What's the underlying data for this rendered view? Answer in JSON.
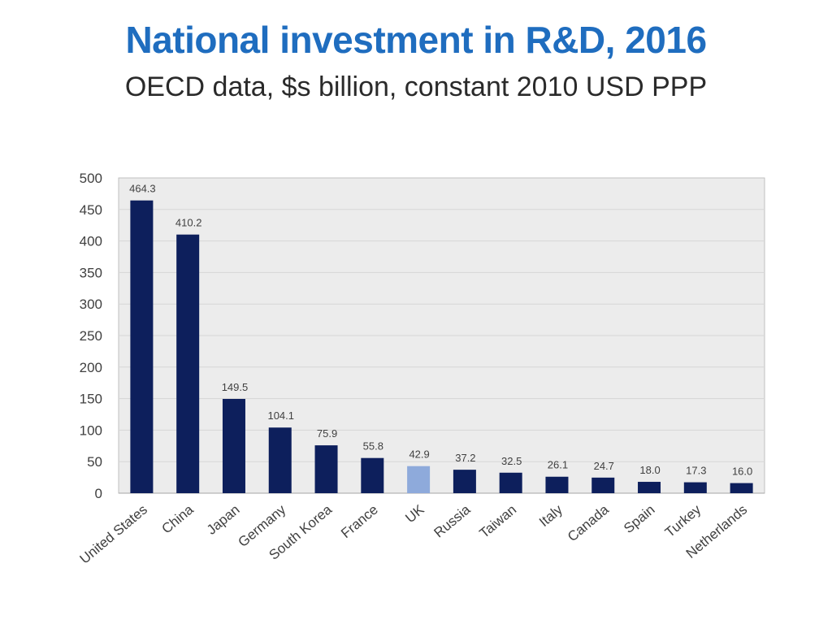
{
  "title": "National investment in R&D, 2016",
  "subtitle": "OECD data, $s billion, constant 2010 USD PPP",
  "colors": {
    "bar": "#0d1f5c",
    "highlight": "#8eaadb",
    "plot_bg": "#ececec",
    "grid": "#d6d6d6"
  },
  "chart_data": {
    "type": "bar",
    "title": "National investment in R&D, 2016",
    "subtitle": "OECD data, $s billion, constant 2010 USD PPP",
    "xlabel": "",
    "ylabel": "",
    "ylim": [
      0,
      500
    ],
    "yticks": [
      0,
      50,
      100,
      150,
      200,
      250,
      300,
      350,
      400,
      450,
      500
    ],
    "grid": true,
    "highlight_category": "UK",
    "categories": [
      "United States",
      "China",
      "Japan",
      "Germany",
      "South Korea",
      "France",
      "UK",
      "Russia",
      "Taiwan",
      "Italy",
      "Canada",
      "Spain",
      "Turkey",
      "Netherlands"
    ],
    "values": [
      464.3,
      410.2,
      149.5,
      104.1,
      75.9,
      55.8,
      42.9,
      37.2,
      32.5,
      26.1,
      24.7,
      18.0,
      17.3,
      16.0
    ],
    "value_labels": [
      "464.3",
      "410.2",
      "149.5",
      "104.1",
      "75.9",
      "55.8",
      "42.9",
      "37.2",
      "32.5",
      "26.1",
      "24.7",
      "18.0",
      "17.3",
      "16.0"
    ]
  }
}
